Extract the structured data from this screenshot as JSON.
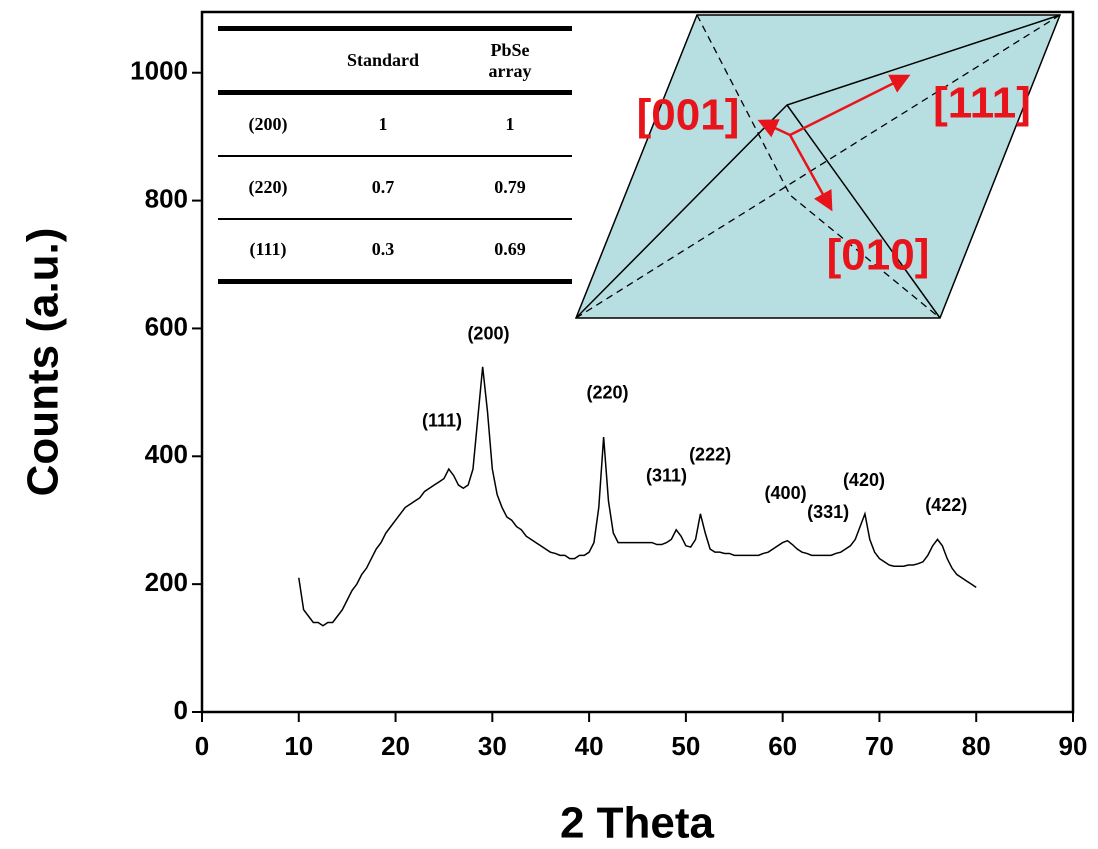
{
  "chart_data": {
    "type": "line",
    "xlabel": "2 Theta",
    "ylabel": "Counts (a.u.)",
    "xlim": [
      0,
      90
    ],
    "xticks": [
      0,
      10,
      20,
      30,
      40,
      50,
      60,
      70,
      80,
      90
    ],
    "ylim": [
      0,
      1095
    ],
    "yticks": [
      0,
      200,
      400,
      600,
      800,
      1000
    ],
    "grid": false,
    "x": [
      10,
      10.5,
      11,
      11.5,
      12,
      12.5,
      13,
      13.5,
      14,
      14.5,
      15,
      15.5,
      16,
      16.5,
      17,
      17.5,
      18,
      18.5,
      19,
      19.5,
      20,
      20.5,
      21,
      21.5,
      22,
      22.5,
      23,
      23.5,
      24,
      24.5,
      25,
      25.5,
      26,
      26.5,
      27,
      27.5,
      28,
      28.5,
      29,
      29.5,
      30,
      30.5,
      31,
      31.5,
      32,
      32.5,
      33,
      33.5,
      34,
      34.5,
      35,
      35.5,
      36,
      36.5,
      37,
      37.5,
      38,
      38.5,
      39,
      39.5,
      40,
      40.5,
      41,
      41.5,
      42,
      42.5,
      43,
      43.5,
      44,
      44.5,
      45,
      45.5,
      46,
      46.5,
      47,
      47.5,
      48,
      48.5,
      49,
      49.5,
      50,
      50.5,
      51,
      51.5,
      52,
      52.5,
      53,
      53.5,
      54,
      54.5,
      55,
      55.5,
      56,
      56.5,
      57,
      57.5,
      58,
      58.5,
      59,
      59.5,
      60,
      60.5,
      61,
      61.5,
      62,
      62.5,
      63,
      63.5,
      64,
      64.5,
      65,
      65.5,
      66,
      66.5,
      67,
      67.5,
      68,
      68.5,
      69,
      69.5,
      70,
      70.5,
      71,
      71.5,
      72,
      72.5,
      73,
      73.5,
      74,
      74.5,
      75,
      75.5,
      76,
      76.5,
      77,
      77.5,
      78,
      78.5,
      79,
      79.5,
      80
    ],
    "series": [
      {
        "color": "#000000",
        "values": [
          210,
          160,
          150,
          140,
          140,
          135,
          140,
          140,
          150,
          160,
          175,
          190,
          200,
          215,
          225,
          240,
          255,
          265,
          280,
          290,
          300,
          310,
          320,
          325,
          330,
          335,
          345,
          350,
          355,
          360,
          365,
          380,
          370,
          355,
          350,
          355,
          380,
          460,
          540,
          470,
          380,
          340,
          320,
          305,
          300,
          290,
          285,
          275,
          270,
          265,
          260,
          255,
          250,
          248,
          245,
          245,
          240,
          240,
          245,
          245,
          250,
          265,
          320,
          430,
          330,
          280,
          265,
          265,
          265,
          265,
          265,
          265,
          265,
          265,
          262,
          262,
          265,
          270,
          285,
          275,
          260,
          258,
          270,
          310,
          280,
          255,
          250,
          250,
          248,
          248,
          245,
          245,
          245,
          245,
          245,
          245,
          248,
          250,
          255,
          260,
          265,
          268,
          262,
          255,
          250,
          248,
          245,
          245,
          245,
          245,
          245,
          248,
          250,
          255,
          260,
          270,
          290,
          310,
          270,
          250,
          240,
          235,
          230,
          228,
          228,
          228,
          230,
          230,
          232,
          235,
          245,
          260,
          270,
          260,
          240,
          225,
          215,
          210,
          205,
          200,
          195
        ]
      }
    ],
    "annotations": [
      {
        "text": "(111)",
        "x": 24.8,
        "y": 454
      },
      {
        "text": "(200)",
        "x": 29.6,
        "y": 590
      },
      {
        "text": "(220)",
        "x": 41.9,
        "y": 498
      },
      {
        "text": "(311)",
        "x": 48.0,
        "y": 368
      },
      {
        "text": "(222)",
        "x": 52.5,
        "y": 401
      },
      {
        "text": "(400)",
        "x": 60.3,
        "y": 341
      },
      {
        "text": "(331)",
        "x": 64.7,
        "y": 311
      },
      {
        "text": "(420)",
        "x": 68.4,
        "y": 361
      },
      {
        "text": "(422)",
        "x": 76.9,
        "y": 322
      }
    ]
  },
  "inset_table": {
    "columns": [
      "Standard",
      "PbSe array"
    ],
    "rows": [
      {
        "label": "(200)",
        "values": [
          1,
          1
        ]
      },
      {
        "label": "(220)",
        "values": [
          0.7,
          0.79
        ]
      },
      {
        "label": "(111)",
        "values": [
          0.3,
          0.69
        ]
      }
    ]
  },
  "inset_diagram": {
    "labels": [
      "[111]",
      "[001]",
      "[010]"
    ]
  }
}
